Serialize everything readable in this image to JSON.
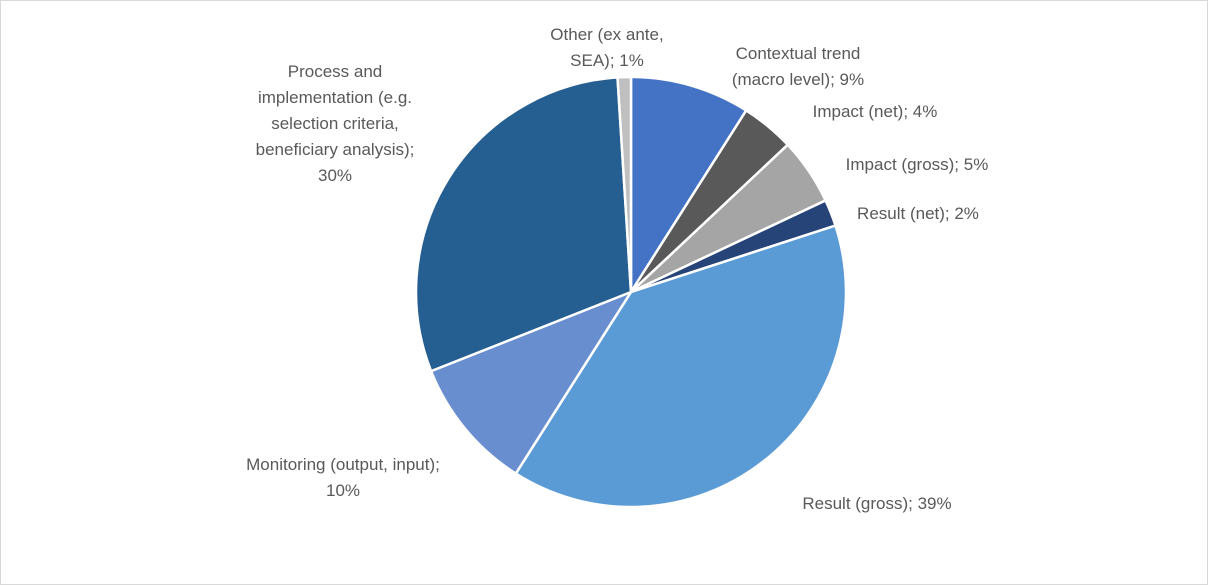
{
  "chart_data": {
    "type": "pie",
    "value_labels": [
      "Contextual trend (macro level); 9%",
      "Impact (net); 4%",
      "Impact (gross); 5%",
      "Result (net); 2%",
      "Result (gross); 39%",
      "Monitoring (output, input); 10%",
      "Process and implementation (e.g. selection criteria, beneficiary analysis); 30%",
      "Other (ex ante, SEA); 1%"
    ],
    "values": [
      9,
      4,
      5,
      2,
      39,
      10,
      30,
      1
    ],
    "colors": [
      "#4472c4",
      "#595959",
      "#a5a5a5",
      "#264478",
      "#5b9bd5",
      "#698ed0",
      "#255e91",
      "#bfbfbf"
    ]
  }
}
